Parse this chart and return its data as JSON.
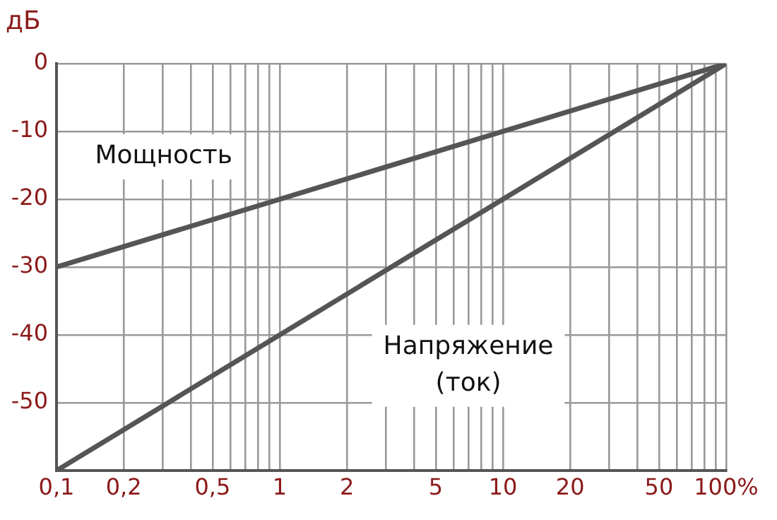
{
  "chart_data": {
    "type": "line",
    "ylabel": "дБ",
    "log": "x",
    "xlim": [
      0.1,
      100
    ],
    "ylim": [
      -60,
      0
    ],
    "xticks": [
      {
        "value": 0.1,
        "label": "0,1"
      },
      {
        "value": 0.2,
        "label": "0,2"
      },
      {
        "value": 0.3,
        "label": null
      },
      {
        "value": 0.4,
        "label": null
      },
      {
        "value": 0.5,
        "label": "0,5"
      },
      {
        "value": 0.6,
        "label": null
      },
      {
        "value": 0.7,
        "label": null
      },
      {
        "value": 0.8,
        "label": null
      },
      {
        "value": 0.9,
        "label": null
      },
      {
        "value": 1,
        "label": "1"
      },
      {
        "value": 2,
        "label": "2"
      },
      {
        "value": 3,
        "label": null
      },
      {
        "value": 4,
        "label": null
      },
      {
        "value": 5,
        "label": "5"
      },
      {
        "value": 6,
        "label": null
      },
      {
        "value": 7,
        "label": null
      },
      {
        "value": 8,
        "label": null
      },
      {
        "value": 9,
        "label": null
      },
      {
        "value": 10,
        "label": "10"
      },
      {
        "value": 20,
        "label": "20"
      },
      {
        "value": 30,
        "label": null
      },
      {
        "value": 40,
        "label": null
      },
      {
        "value": 50,
        "label": "50"
      },
      {
        "value": 60,
        "label": null
      },
      {
        "value": 70,
        "label": null
      },
      {
        "value": 80,
        "label": null
      },
      {
        "value": 90,
        "label": null
      },
      {
        "value": 100,
        "label": "100%"
      }
    ],
    "yticks": [
      {
        "value": -60,
        "label": null
      },
      -50,
      -40,
      -30,
      -20,
      -10,
      0
    ],
    "x": [
      0.1,
      100
    ],
    "grid": true,
    "marker": "none",
    "line_style": "solid",
    "series": [
      {
        "name": "Мощность",
        "color": "#555555",
        "values": [
          -30,
          0
        ]
      },
      {
        "name": "Напряжение\n(ток)",
        "color": "#555555",
        "values": [
          -60,
          0
        ]
      }
    ]
  }
}
